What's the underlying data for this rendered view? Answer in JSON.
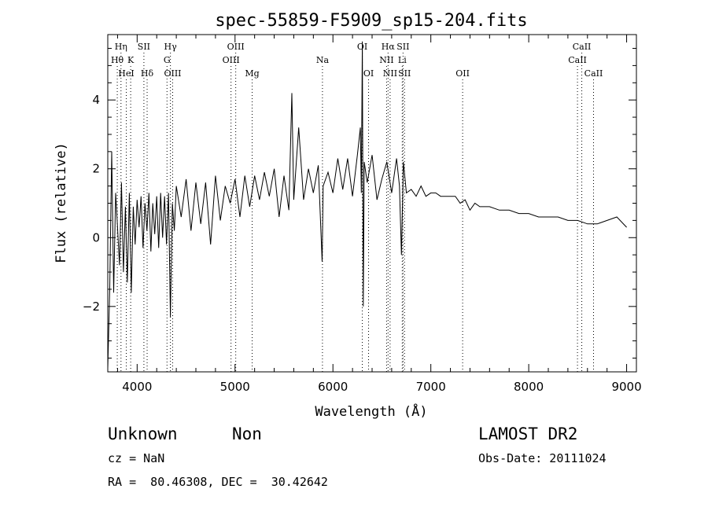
{
  "chart_data": {
    "type": "line",
    "title": "spec-55859-F5909_sp15-204.fits",
    "xlabel": "Wavelength (Å)",
    "ylabel": "Flux (relative)",
    "xlim": [
      3700,
      9100
    ],
    "ylim": [
      -3.9,
      5.9
    ],
    "x_ticks": [
      4000,
      5000,
      6000,
      7000,
      8000,
      9000
    ],
    "y_ticks": [
      -2,
      0,
      2,
      4
    ],
    "grid": false,
    "line_color": "#000000",
    "marker_color": "#000000",
    "spectral_lines": [
      {
        "label": "Hη",
        "wavelength": 3835,
        "row": 0
      },
      {
        "label": "SII",
        "wavelength": 4069,
        "row": 0
      },
      {
        "label": "Hγ",
        "wavelength": 4340,
        "row": 0
      },
      {
        "label": "OIII",
        "wavelength": 5007,
        "row": 0
      },
      {
        "label": "OI",
        "wavelength": 6300,
        "row": 0
      },
      {
        "label": "Hα",
        "wavelength": 6563,
        "row": 0
      },
      {
        "label": "SII",
        "wavelength": 6716,
        "row": 0
      },
      {
        "label": "CaII",
        "wavelength": 8542,
        "row": 0
      },
      {
        "label": "Hθ",
        "wavelength": 3797,
        "row": 1
      },
      {
        "label": "K",
        "wavelength": 3934,
        "row": 1
      },
      {
        "label": "G",
        "wavelength": 4305,
        "row": 1
      },
      {
        "label": "OIII",
        "wavelength": 4959,
        "row": 1
      },
      {
        "label": "Na",
        "wavelength": 5893,
        "row": 1
      },
      {
        "label": "NII",
        "wavelength": 6548,
        "row": 1
      },
      {
        "label": "Li",
        "wavelength": 6708,
        "row": 1
      },
      {
        "label": "CaII",
        "wavelength": 8498,
        "row": 1
      },
      {
        "label": "HeI",
        "wavelength": 3889,
        "row": 2
      },
      {
        "label": "Hδ",
        "wavelength": 4102,
        "row": 2
      },
      {
        "label": "OIII",
        "wavelength": 4363,
        "row": 2
      },
      {
        "label": "Mg",
        "wavelength": 5175,
        "row": 2
      },
      {
        "label": "OI",
        "wavelength": 6364,
        "row": 2
      },
      {
        "label": "NII",
        "wavelength": 6584,
        "row": 2
      },
      {
        "label": "SII",
        "wavelength": 6731,
        "row": 2
      },
      {
        "label": "OII",
        "wavelength": 7325,
        "row": 2
      },
      {
        "label": "CaII",
        "wavelength": 8662,
        "row": 2
      }
    ],
    "series": [
      {
        "x": [
          3700,
          3720,
          3740,
          3760,
          3780,
          3800,
          3820,
          3840,
          3860,
          3880,
          3900,
          3920,
          3940,
          3960,
          3980,
          4000,
          4020,
          4040,
          4060,
          4080,
          4100,
          4120,
          4140,
          4160,
          4180,
          4200,
          4220,
          4240,
          4260,
          4280,
          4300,
          4320,
          4340,
          4360,
          4380,
          4400,
          4450,
          4500,
          4550,
          4600,
          4650,
          4700,
          4750,
          4800,
          4850,
          4900,
          4950,
          5000,
          5050,
          5100,
          5150,
          5200,
          5250,
          5300,
          5350,
          5400,
          5450,
          5500,
          5550,
          5580,
          5600,
          5650,
          5700,
          5750,
          5800,
          5850,
          5890,
          5900,
          5950,
          6000,
          6050,
          6100,
          6150,
          6200,
          6250,
          6280,
          6290,
          6300,
          6310,
          6320,
          6350,
          6400,
          6450,
          6500,
          6550,
          6600,
          6650,
          6680,
          6700,
          6720,
          6750,
          6800,
          6850,
          6900,
          6950,
          7000,
          7050,
          7100,
          7150,
          7200,
          7250,
          7300,
          7350,
          7400,
          7450,
          7500,
          7600,
          7700,
          7800,
          7900,
          8000,
          8100,
          8200,
          8300,
          8400,
          8500,
          8600,
          8700,
          8800,
          8900,
          9000
        ],
        "y": [
          -3.8,
          -1.5,
          2.5,
          -1.6,
          1.3,
          0.3,
          -0.8,
          1.6,
          -1.0,
          0.9,
          -1.3,
          1.3,
          -1.6,
          0.9,
          -0.2,
          1.1,
          0.3,
          1.2,
          -0.3,
          1.0,
          0.2,
          1.3,
          -0.4,
          1.0,
          0.1,
          1.2,
          -0.3,
          1.3,
          0.0,
          1.2,
          -0.2,
          1.3,
          -2.3,
          1.0,
          0.2,
          1.5,
          0.6,
          1.7,
          0.2,
          1.6,
          0.4,
          1.6,
          -0.2,
          1.8,
          0.5,
          1.5,
          1.0,
          1.7,
          0.6,
          1.8,
          0.9,
          1.8,
          1.1,
          1.9,
          1.2,
          2.0,
          0.6,
          1.8,
          0.8,
          4.2,
          1.1,
          3.2,
          1.1,
          2.0,
          1.3,
          2.1,
          -0.7,
          1.5,
          1.9,
          1.3,
          2.3,
          1.4,
          2.3,
          1.2,
          2.4,
          3.2,
          1.3,
          5.7,
          -2.0,
          2.2,
          1.6,
          2.4,
          1.1,
          1.7,
          2.2,
          1.3,
          2.3,
          1.5,
          -0.5,
          2.2,
          1.3,
          1.4,
          1.2,
          1.5,
          1.2,
          1.3,
          1.3,
          1.2,
          1.2,
          1.2,
          1.2,
          1.0,
          1.1,
          0.8,
          1.0,
          0.9,
          0.9,
          0.8,
          0.8,
          0.7,
          0.7,
          0.6,
          0.6,
          0.6,
          0.5,
          0.5,
          0.4,
          0.4,
          0.5,
          0.6,
          0.3
        ]
      }
    ]
  },
  "footer": {
    "class_label": "Unknown",
    "subclass_label": "Non",
    "survey": "LAMOST DR2",
    "redshift": "cz = NaN",
    "obs_date": "Obs-Date: 20111024",
    "coords": "RA =  80.46308, DEC =  30.42642"
  }
}
